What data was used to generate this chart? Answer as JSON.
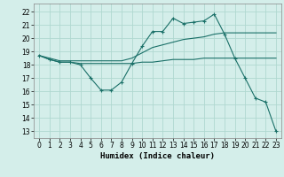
{
  "xlabel": "Humidex (Indice chaleur)",
  "bg_color": "#d4eeea",
  "grid_color": "#b0d8d0",
  "line_color": "#1a7068",
  "xlim": [
    -0.5,
    23.5
  ],
  "ylim": [
    12.5,
    22.6
  ],
  "yticks": [
    13,
    14,
    15,
    16,
    17,
    18,
    19,
    20,
    21,
    22
  ],
  "xticks": [
    0,
    1,
    2,
    3,
    4,
    5,
    6,
    7,
    8,
    9,
    10,
    11,
    12,
    13,
    14,
    15,
    16,
    17,
    18,
    19,
    20,
    21,
    22,
    23
  ],
  "line1_x": [
    0,
    1,
    2,
    3,
    4,
    5,
    6,
    7,
    8,
    9,
    10,
    11,
    12,
    13,
    14,
    15,
    16,
    17,
    18,
    19,
    20,
    21,
    22,
    23
  ],
  "line1_y": [
    18.7,
    18.4,
    18.2,
    18.2,
    18.0,
    17.0,
    16.1,
    16.1,
    16.7,
    18.1,
    19.4,
    20.5,
    20.5,
    21.5,
    21.1,
    21.2,
    21.3,
    21.8,
    20.3,
    18.5,
    17.0,
    15.5,
    15.2,
    13.0
  ],
  "line2_x": [
    0,
    1,
    2,
    3,
    4,
    5,
    6,
    7,
    8,
    9,
    10,
    11,
    12,
    13,
    14,
    15,
    16,
    17,
    18,
    19,
    20,
    21,
    22,
    23
  ],
  "line2_y": [
    18.7,
    18.4,
    18.2,
    18.2,
    18.1,
    18.1,
    18.1,
    18.1,
    18.1,
    18.1,
    18.2,
    18.2,
    18.3,
    18.4,
    18.4,
    18.4,
    18.5,
    18.5,
    18.5,
    18.5,
    18.5,
    18.5,
    18.5,
    18.5
  ],
  "line3_x": [
    0,
    1,
    2,
    3,
    4,
    5,
    6,
    7,
    8,
    9,
    10,
    11,
    12,
    13,
    14,
    15,
    16,
    17,
    18,
    19,
    20,
    21,
    22,
    23
  ],
  "line3_y": [
    18.7,
    18.5,
    18.3,
    18.3,
    18.3,
    18.3,
    18.3,
    18.3,
    18.3,
    18.5,
    18.9,
    19.3,
    19.5,
    19.7,
    19.9,
    20.0,
    20.1,
    20.3,
    20.4,
    20.4,
    20.4,
    20.4,
    20.4,
    20.4
  ],
  "xlabel_fontsize": 6.5,
  "tick_fontsize": 5.5
}
